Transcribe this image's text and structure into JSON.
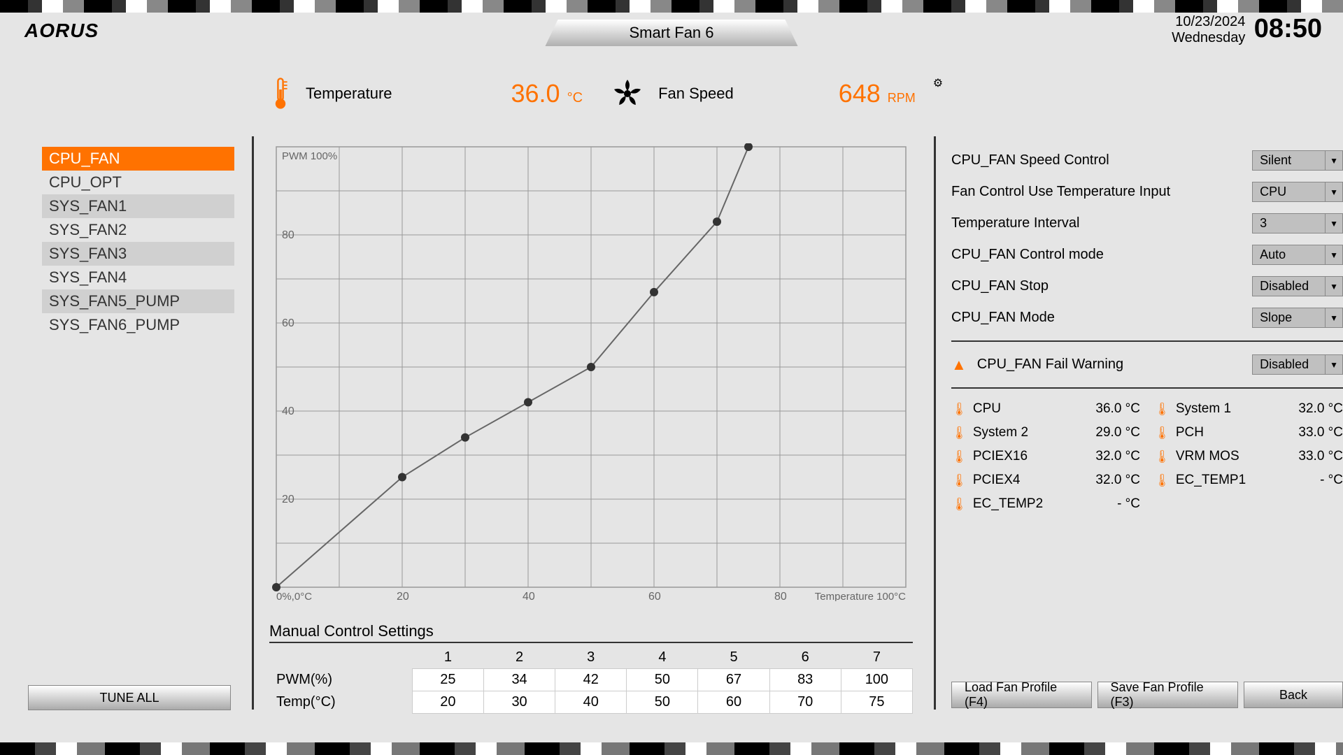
{
  "header": {
    "brand": "AORUS",
    "tab_title": "Smart Fan 6",
    "date": "10/23/2024",
    "day": "Wednesday",
    "time": "08:50"
  },
  "status": {
    "temp_label": "Temperature",
    "temp_value": "36.0",
    "temp_unit": "°C",
    "speed_label": "Fan Speed",
    "rpm_value": "648",
    "rpm_unit": "RPM"
  },
  "fan_list": [
    {
      "name": "CPU_FAN",
      "selected": true
    },
    {
      "name": "CPU_OPT"
    },
    {
      "name": "SYS_FAN1"
    },
    {
      "name": "SYS_FAN2"
    },
    {
      "name": "SYS_FAN3"
    },
    {
      "name": "SYS_FAN4"
    },
    {
      "name": "SYS_FAN5_PUMP"
    },
    {
      "name": "SYS_FAN6_PUMP"
    }
  ],
  "chart": {
    "type": "line",
    "y_label_top": "PWM 100%",
    "x_label_left": "0%,0°C",
    "x_label_right": "Temperature 100°C",
    "x_ticks": [
      20,
      40,
      60,
      80
    ],
    "y_ticks": [
      20,
      40,
      60,
      80
    ],
    "xlim": [
      0,
      100
    ],
    "ylim": [
      0,
      100
    ],
    "points": [
      {
        "x": 0,
        "y": 0
      },
      {
        "x": 20,
        "y": 25
      },
      {
        "x": 30,
        "y": 34
      },
      {
        "x": 40,
        "y": 42
      },
      {
        "x": 50,
        "y": 50
      },
      {
        "x": 60,
        "y": 67
      },
      {
        "x": 70,
        "y": 83
      },
      {
        "x": 75,
        "y": 100
      }
    ],
    "line_color": "#666666",
    "point_color": "#333333",
    "point_radius": 6,
    "grid_color": "#999999",
    "background": "#e5e5e5"
  },
  "manual": {
    "title": "Manual Control Settings",
    "headers": [
      "1",
      "2",
      "3",
      "4",
      "5",
      "6",
      "7"
    ],
    "pwm_label": "PWM(%)",
    "temp_label": "Temp(°C)",
    "pwm": [
      "25",
      "34",
      "42",
      "50",
      "67",
      "83",
      "100"
    ],
    "temp": [
      "20",
      "30",
      "40",
      "50",
      "60",
      "70",
      "75"
    ]
  },
  "settings": [
    {
      "label": "CPU_FAN Speed Control",
      "value": "Silent"
    },
    {
      "label": "Fan Control Use Temperature Input",
      "value": "CPU"
    },
    {
      "label": "Temperature Interval",
      "value": "3"
    },
    {
      "label": "CPU_FAN Control mode",
      "value": "Auto"
    },
    {
      "label": "CPU_FAN Stop",
      "value": "Disabled"
    },
    {
      "label": "CPU_FAN Mode",
      "value": "Slope"
    }
  ],
  "warning": {
    "label": "CPU_FAN Fail Warning",
    "value": "Disabled"
  },
  "temps": [
    {
      "name": "CPU",
      "val": "36.0 °C"
    },
    {
      "name": "System 1",
      "val": "32.0 °C"
    },
    {
      "name": "System 2",
      "val": "29.0 °C"
    },
    {
      "name": "PCH",
      "val": "33.0 °C"
    },
    {
      "name": "PCIEX16",
      "val": "32.0 °C"
    },
    {
      "name": "VRM MOS",
      "val": "33.0 °C"
    },
    {
      "name": "PCIEX4",
      "val": "32.0 °C"
    },
    {
      "name": "EC_TEMP1",
      "val": "- °C"
    },
    {
      "name": "EC_TEMP2",
      "val": "- °C"
    }
  ],
  "buttons": {
    "tune_all": "TUNE ALL",
    "load": "Load Fan Profile (F4)",
    "save": "Save Fan Profile (F3)",
    "back": "Back"
  }
}
